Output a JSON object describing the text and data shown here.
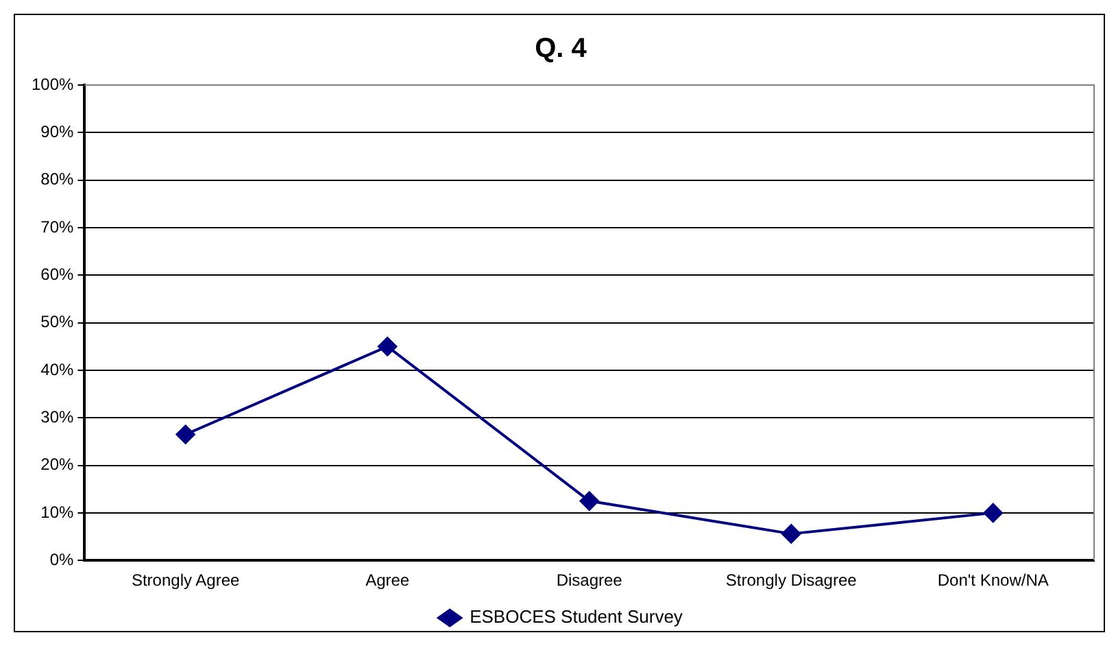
{
  "chart_data": {
    "type": "line",
    "title": "Q. 4",
    "categories": [
      "Strongly Agree",
      "Agree",
      "Disagree",
      "Strongly Disagree",
      "Don't Know/NA"
    ],
    "series": [
      {
        "name": "ESBOCES Student Survey",
        "color": "#000080",
        "values": [
          26.5,
          45,
          12.5,
          5.6,
          10
        ]
      }
    ],
    "ylim": [
      0,
      100
    ],
    "yticks": [
      {
        "value": 0,
        "label": "0%"
      },
      {
        "value": 10,
        "label": "10%"
      },
      {
        "value": 20,
        "label": "20%"
      },
      {
        "value": 30,
        "label": "30%"
      },
      {
        "value": 40,
        "label": "40%"
      },
      {
        "value": 50,
        "label": "50%"
      },
      {
        "value": 60,
        "label": "60%"
      },
      {
        "value": 70,
        "label": "70%"
      },
      {
        "value": 80,
        "label": "80%"
      },
      {
        "value": 90,
        "label": "90%"
      },
      {
        "value": 100,
        "label": "100%"
      }
    ],
    "grid": "y",
    "legend": "bottom",
    "marker": "diamond",
    "line_style": "solid"
  }
}
